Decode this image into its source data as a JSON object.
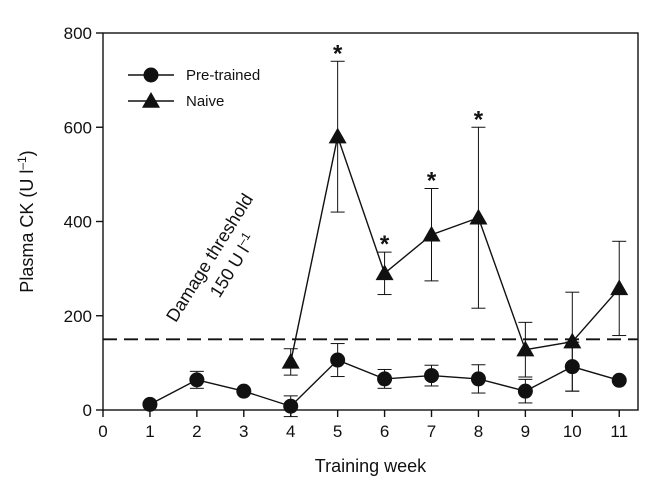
{
  "chart_data": {
    "type": "line",
    "xlabel": "Training week",
    "ylabel_main": "Plasma CK (U l",
    "ylabel_sup": "–1",
    "ylabel_close": ")",
    "xlim": [
      0,
      11.4
    ],
    "ylim": [
      0,
      800
    ],
    "x_ticks": [
      0,
      1,
      2,
      3,
      4,
      5,
      6,
      7,
      8,
      9,
      10,
      11
    ],
    "y_ticks": [
      0,
      200,
      400,
      600,
      800
    ],
    "legend_position": "top-left",
    "series": [
      {
        "name": "Pre-trained",
        "marker": "circle",
        "points": [
          {
            "x": 1,
            "y": 12,
            "err": 0
          },
          {
            "x": 2,
            "y": 64,
            "err": 18
          },
          {
            "x": 3,
            "y": 40,
            "err": 0
          },
          {
            "x": 4,
            "y": 8,
            "err": 22
          },
          {
            "x": 5,
            "y": 106,
            "err": 35
          },
          {
            "x": 6,
            "y": 66,
            "err": 20
          },
          {
            "x": 7,
            "y": 73,
            "err": 22
          },
          {
            "x": 8,
            "y": 66,
            "err": 30
          },
          {
            "x": 9,
            "y": 40,
            "err": 25
          },
          {
            "x": 10,
            "y": 92,
            "err": 52
          },
          {
            "x": 11,
            "y": 63,
            "err": 0
          }
        ]
      },
      {
        "name": "Naive",
        "marker": "triangle",
        "points": [
          {
            "x": 4,
            "y": 102,
            "err": 28
          },
          {
            "x": 5,
            "y": 580,
            "err": 160
          },
          {
            "x": 6,
            "y": 290,
            "err": 45
          },
          {
            "x": 7,
            "y": 372,
            "err": 98
          },
          {
            "x": 8,
            "y": 408,
            "err": 192
          },
          {
            "x": 9,
            "y": 128,
            "err": 58
          },
          {
            "x": 10,
            "y": 145,
            "err": 105
          },
          {
            "x": 11,
            "y": 258,
            "err": 100
          }
        ]
      }
    ],
    "threshold": {
      "value": 150,
      "line1": "Damage threshold",
      "line2_main": "150 U l",
      "line2_sup": "–1"
    },
    "significance": {
      "symbol": "*",
      "weeks": [
        5,
        6,
        7,
        8
      ],
      "series": "Naive"
    }
  }
}
